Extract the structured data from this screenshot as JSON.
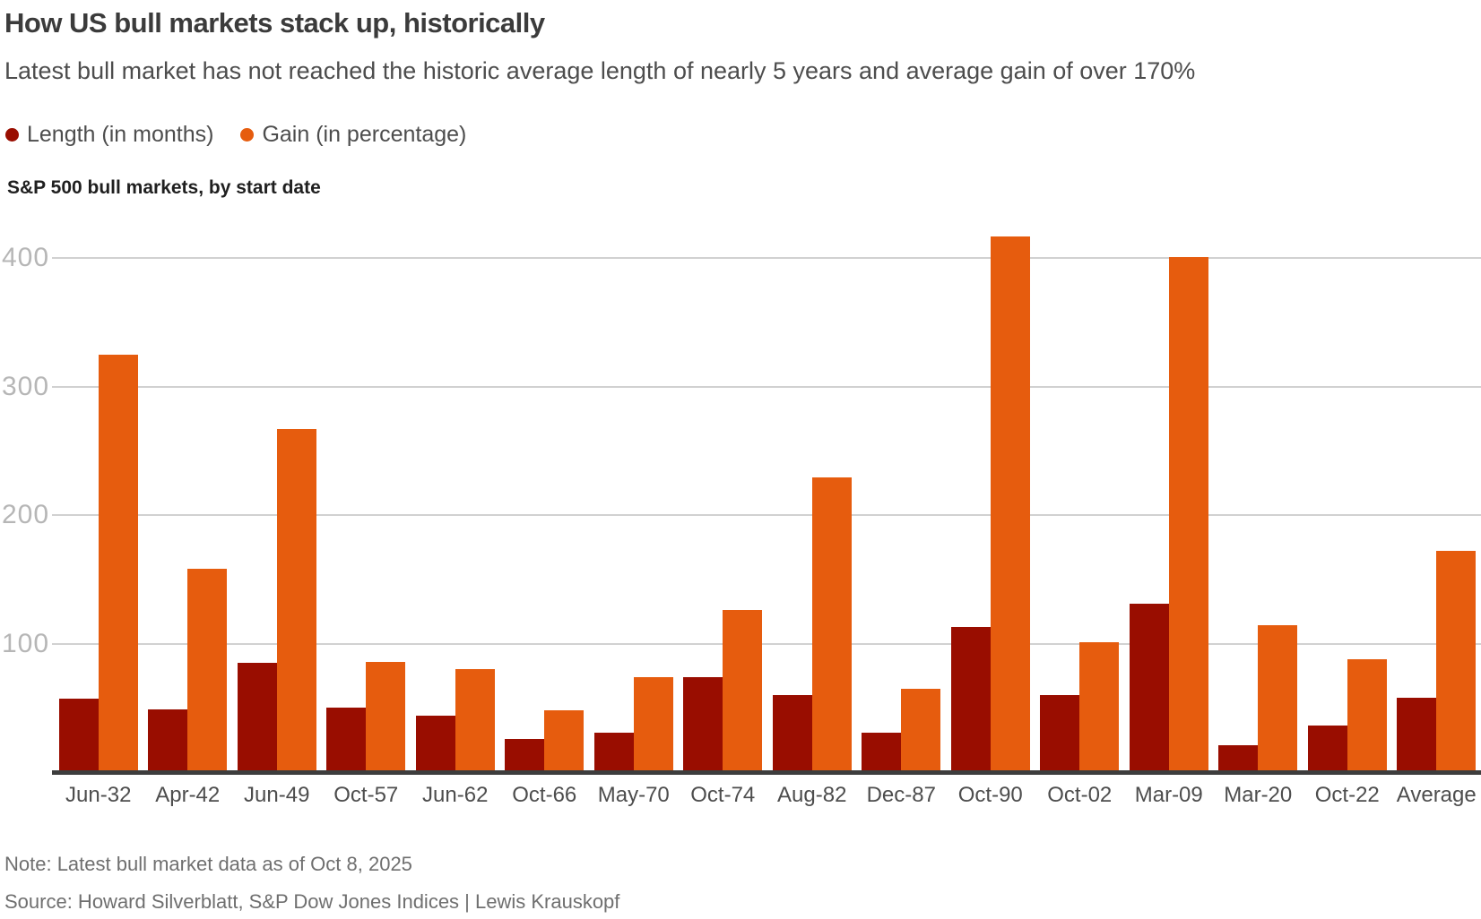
{
  "header": {
    "title": "How US bull markets stack up, historically",
    "subtitle": "Latest bull market has not reached the historic average length of nearly 5 years and average gain of over 170%",
    "chart_subtitle": "S&P 500 bull markets, by start date"
  },
  "legend": [
    {
      "label": "Length (in months)",
      "color": "#990d00"
    },
    {
      "label": "Gain (in percentage)",
      "color": "#e65c0e"
    }
  ],
  "chart_data": {
    "type": "bar",
    "title": "S&P 500 bull markets, by start date",
    "categories": [
      "Jun-32",
      "Apr-42",
      "Jun-49",
      "Oct-57",
      "Jun-62",
      "Oct-66",
      "May-70",
      "Oct-74",
      "Aug-82",
      "Dec-87",
      "Oct-90",
      "Oct-02",
      "Mar-09",
      "Mar-20",
      "Oct-22",
      "Average"
    ],
    "series": [
      {
        "name": "Length (in months)",
        "color": "#990d00",
        "values": [
          57,
          49,
          85,
          50,
          44,
          26,
          31,
          74,
          60,
          31,
          113,
          60,
          131,
          21,
          36,
          58
        ]
      },
      {
        "name": "Gain (in percentage)",
        "color": "#e65c0e",
        "values": [
          325,
          158,
          267,
          86,
          80,
          48,
          74,
          126,
          229,
          65,
          417,
          101,
          401,
          114,
          88,
          172
        ]
      }
    ],
    "xlabel": "",
    "ylabel": "",
    "yticks": [
      100,
      200,
      300,
      400
    ],
    "ylim": [
      0,
      430
    ],
    "grid": true,
    "legend_position": "top-left"
  },
  "footer": {
    "note": "Note: Latest bull market data as of Oct 8, 2025",
    "source": "Source: Howard Silverblatt, S&P Dow Jones Indices | Lewis Krauskopf"
  },
  "colors": {
    "length": "#990d00",
    "gain": "#e65c0e",
    "gridline": "#d1d1d1",
    "axis": "#3d3d3d"
  }
}
